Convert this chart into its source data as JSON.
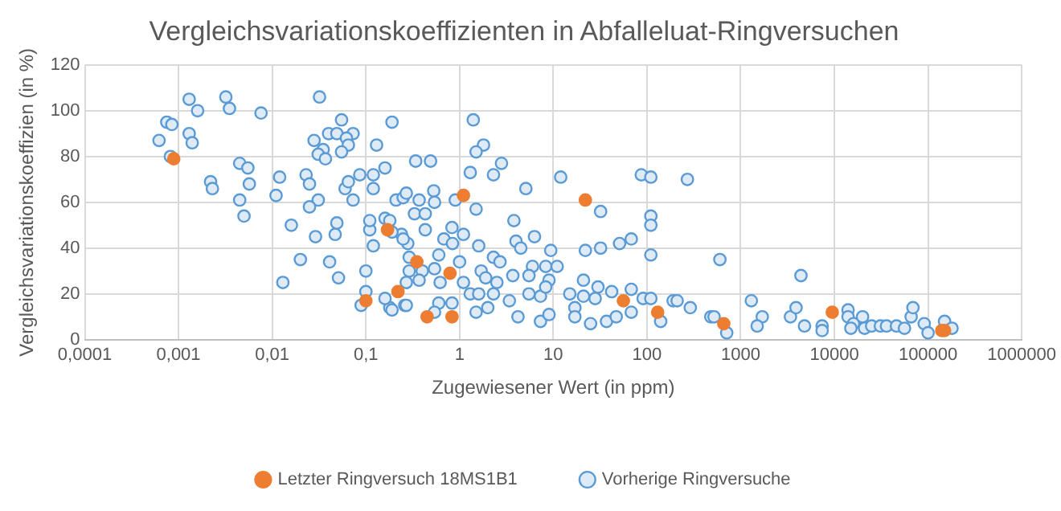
{
  "chart_data": {
    "type": "scatter",
    "title": "Vergleichsvariationskoeffizienten in Abfalleluat-Ringversuchen",
    "xlabel": "Zugewiesener Wert (in ppm)",
    "ylabel": "Vergleichsvariationskoeffizien (in %)",
    "log": "x",
    "xlim": [
      0.0001,
      1000000
    ],
    "xticks": [
      {
        "value": 0.0001,
        "label": "0,0001"
      },
      {
        "value": 0.001,
        "label": "0,001"
      },
      {
        "value": 0.01,
        "label": "0,01"
      },
      {
        "value": 0.1,
        "label": "0,1"
      },
      1,
      10,
      100,
      1000,
      10000,
      100000,
      1000000
    ],
    "ylim": [
      0,
      120
    ],
    "yticks": [
      0,
      20,
      40,
      60,
      80,
      100,
      120
    ],
    "grid": true,
    "legend": "bottom",
    "marker": "circle",
    "series": [
      {
        "name": "Vorherige Ringversuche",
        "color": "#5b9bd5",
        "x": [
          0.0013,
          0.0016,
          0.0032,
          0.0035,
          0.0076,
          0.032,
          0.00075,
          0.00085,
          0.0013,
          0.00062,
          0.0014,
          0.00082,
          0.0045,
          0.0055,
          0.0022,
          0.0023,
          0.0057,
          0.0045,
          0.005,
          0.012,
          0.011,
          0.016,
          0.013,
          0.02,
          0.023,
          0.025,
          0.031,
          0.025,
          0.029,
          0.041,
          0.047,
          0.049,
          0.051,
          0.028,
          0.04,
          0.049,
          0.055,
          0.073,
          0.062,
          0.065,
          0.055,
          0.035,
          0.031,
          0.037,
          0.06,
          0.065,
          0.073,
          0.086,
          0.12,
          0.16,
          0.13,
          0.19,
          0.12,
          0.1,
          0.1,
          0.089,
          0.18,
          0.26,
          0.12,
          0.11,
          0.11,
          0.16,
          0.21,
          0.25,
          0.24,
          0.28,
          0.29,
          0.29,
          1.4,
          1.8,
          1.5,
          1.3,
          2.3,
          2.8,
          0.34,
          0.49,
          5.1,
          12,
          87,
          110,
          270,
          32,
          110,
          110,
          1.5,
          3.8,
          0.27,
          0.37,
          0.53,
          0.54,
          0.9,
          0.33,
          0.43,
          0.18,
          0.19,
          0.25,
          0.43,
          0.83,
          1.1,
          0.68,
          0.84,
          1.6,
          4,
          4.5,
          6.3,
          9.4,
          51,
          68,
          32,
          22,
          110,
          0.6,
          1,
          2.3,
          6,
          8.3,
          11,
          0.4,
          0.54,
          1.7,
          2.7,
          1.9,
          0.27,
          0.37,
          0.62,
          1.1,
          2.5,
          3.7,
          5.5,
          9,
          1.3,
          1.6,
          2.3,
          3.4,
          5.5,
          7.3,
          8.3,
          15,
          21,
          30,
          21,
          28,
          42,
          68,
          91,
          110,
          190,
          290,
          0.16,
          0.6,
          0.83,
          0.19,
          0.27,
          0.54,
          1.5,
          2,
          4.2,
          7.3,
          9,
          17,
          17,
          25,
          37,
          47,
          68,
          140,
          480,
          600,
          4400,
          210,
          520,
          710,
          1300,
          1700,
          1500,
          3400,
          3900,
          4800,
          7400,
          7400,
          14000,
          14000,
          16000,
          20000,
          21000,
          25000,
          31000,
          36000,
          46000,
          56000,
          66000,
          69000,
          91000,
          100000,
          150000,
          180000,
          15000
        ],
        "values": [
          105,
          100,
          106,
          101,
          99,
          106,
          95,
          94,
          90,
          87,
          86,
          80,
          77,
          75,
          69,
          66,
          68,
          61,
          54,
          71,
          63,
          50,
          25,
          35,
          72,
          68,
          61,
          58,
          45,
          34,
          46,
          51,
          27,
          87,
          90,
          90,
          96,
          90,
          88,
          85,
          82,
          83,
          81,
          79,
          66,
          69,
          61,
          72,
          72,
          75,
          85,
          95,
          66,
          30,
          21,
          15,
          14,
          15,
          41,
          48,
          52,
          53,
          61,
          62,
          46,
          42,
          30,
          36,
          96,
          85,
          82,
          73,
          72,
          77,
          78,
          78,
          66,
          71,
          72,
          71,
          70,
          56,
          54,
          50,
          57,
          52,
          64,
          61,
          65,
          60,
          61,
          55,
          55,
          52,
          47,
          44,
          48,
          49,
          46,
          44,
          42,
          41,
          43,
          40,
          45,
          39,
          42,
          44,
          40,
          39,
          37,
          37,
          34,
          36,
          32,
          32,
          32,
          30,
          31,
          30,
          34,
          27,
          25,
          26,
          25,
          25,
          25,
          28,
          28,
          26,
          20,
          20,
          20,
          17,
          20,
          19,
          23,
          20,
          26,
          23,
          19,
          18,
          21,
          22,
          18,
          18,
          17,
          14,
          18,
          16,
          16,
          13,
          15,
          12,
          12,
          14,
          10,
          8,
          11,
          14,
          10,
          7,
          8,
          10,
          12,
          8,
          10,
          35,
          28,
          17,
          10,
          3,
          17,
          10,
          6,
          10,
          14,
          6,
          6,
          4,
          13,
          10,
          7,
          10,
          5,
          6,
          6,
          6,
          6,
          5,
          10,
          14,
          7,
          3,
          8,
          5,
          5
        ]
      },
      {
        "name": "Letzter Ringversuch 18MS1B1",
        "color": "#ed7d31",
        "x": [
          0.00089,
          0.17,
          0.22,
          0.1,
          1.1,
          22,
          0.35,
          0.79,
          0.45,
          0.83,
          56,
          130,
          660,
          9500,
          140000,
          150000
        ],
        "values": [
          79,
          48,
          21,
          17,
          63,
          61,
          34,
          29,
          10,
          10,
          17,
          12,
          7,
          12,
          4,
          4
        ]
      }
    ]
  }
}
